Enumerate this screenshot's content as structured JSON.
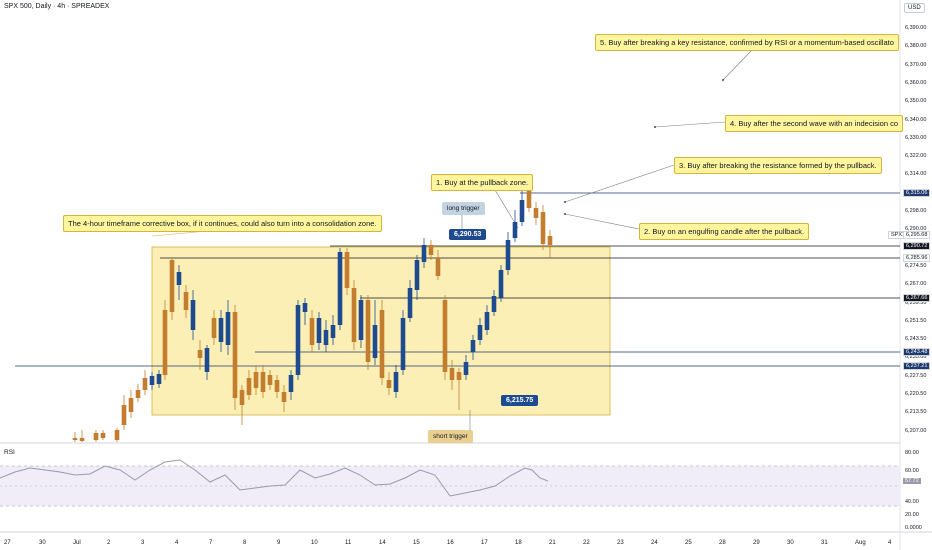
{
  "title": "SPX 500, Daily · 4h · SPREADEX",
  "currency": "USD",
  "annotations": {
    "n1": "1. Buy at the pullback zone.",
    "n2": "2. Buy on an engulfing candle after the pullback.",
    "n3": "3. Buy after breaking the resistance formed by the pullback.",
    "n4": "4. Buy after the second wave with an indecision co",
    "n5": "5. Buy after breaking a key resistance, confirmed by RSI or a momentum-based oscillato",
    "box": "The 4-hour timeframe corrective box, if it continues, could also turn into a consolidation zone.",
    "long_trigger": "long trigger",
    "short_trigger": "short trigger",
    "long_level": "6,290.53",
    "short_level": "6,215.75"
  },
  "price_axis": {
    "ticks": [
      "6,390.00",
      "6,380.00",
      "6,370.00",
      "6,360.00",
      "6,350.00",
      "6,340.00",
      "6,330.00",
      "6,322.00",
      "6,314.00",
      "6,306.00",
      "6,298.00",
      "6,290.00",
      "6,282.00",
      "6,274.50",
      "6,267.00",
      "6,259.50",
      "6,251.50",
      "6,243.50",
      "6,235.00",
      "6,227.50",
      "6,220.50",
      "6,213.50",
      "6,207.00"
    ],
    "badges": [
      {
        "label": "6,315.06",
        "color": "#1e3a6e",
        "text": "#ffffff"
      },
      {
        "label": "SPX1",
        "color": "#ffffff",
        "text": "#131722"
      },
      {
        "label": "6,295.68",
        "color": "#ffffff",
        "text": "#131722"
      },
      {
        "label": "6,290.72",
        "color": "#131722",
        "text": "#ffffff"
      },
      {
        "label": "6,285.96",
        "color": "#ffffff",
        "text": "#131722"
      },
      {
        "label": "6,267.66",
        "color": "#131722",
        "text": "#ffffff"
      },
      {
        "label": "6,243.48",
        "color": "#1e3a6e",
        "text": "#ffffff"
      },
      {
        "label": "6,237.21",
        "color": "#1e3a6e",
        "text": "#ffffff"
      }
    ]
  },
  "rsi": {
    "label": "RSI",
    "ticks": [
      "80.00",
      "60.00",
      "40.00",
      "20.00",
      "0.0000"
    ],
    "value": "57.72"
  },
  "time_axis": [
    "27",
    "30",
    "Jul",
    "2",
    "3",
    "4",
    "7",
    "8",
    "9",
    "10",
    "11",
    "14",
    "15",
    "16",
    "17",
    "18",
    "21",
    "22",
    "23",
    "24",
    "25",
    "28",
    "29",
    "30",
    "31",
    "Aug",
    "4"
  ],
  "colors": {
    "up": "#1e4b8f",
    "down": "#c27d2e",
    "box": "#fbefb5",
    "rsi": "#9a9aa8"
  }
}
